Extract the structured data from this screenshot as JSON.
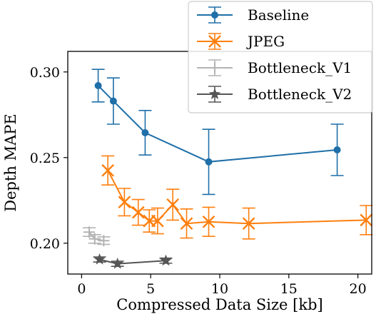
{
  "chart_data": {
    "type": "line",
    "title": "",
    "xlabel": "Compressed Data Size [kb]",
    "ylabel": "Depth MAPE",
    "xlim": [
      -1.0,
      21.0
    ],
    "ylim": [
      0.182,
      0.312
    ],
    "xticks": [
      0,
      5,
      10,
      15,
      20
    ],
    "yticks": [
      0.2,
      0.25,
      0.3
    ],
    "xtick_labels": [
      "0",
      "5",
      "10",
      "15",
      "20"
    ],
    "ytick_labels": [
      "0.20",
      "0.25",
      "0.30"
    ],
    "grid": false,
    "legend_position": "top-right",
    "series": [
      {
        "name": "Baseline",
        "color": "#1f6fa8",
        "marker": "circle",
        "points": [
          {
            "x": 1.2,
            "y": 0.292,
            "err": 0.0095
          },
          {
            "x": 2.3,
            "y": 0.283,
            "err": 0.0135
          },
          {
            "x": 4.6,
            "y": 0.2645,
            "err": 0.013
          },
          {
            "x": 9.2,
            "y": 0.2475,
            "err": 0.019
          },
          {
            "x": 18.5,
            "y": 0.2545,
            "err": 0.015
          }
        ]
      },
      {
        "name": "JPEG",
        "color": "#ff7f0e",
        "marker": "x",
        "points": [
          {
            "x": 1.9,
            "y": 0.2425,
            "err": 0.0085
          },
          {
            "x": 3.1,
            "y": 0.224,
            "err": 0.008
          },
          {
            "x": 4.1,
            "y": 0.218,
            "err": 0.0075
          },
          {
            "x": 4.9,
            "y": 0.213,
            "err": 0.0065
          },
          {
            "x": 5.5,
            "y": 0.213,
            "err": 0.0075
          },
          {
            "x": 6.6,
            "y": 0.2225,
            "err": 0.009
          },
          {
            "x": 7.6,
            "y": 0.2115,
            "err": 0.0085
          },
          {
            "x": 9.2,
            "y": 0.2125,
            "err": 0.0085
          },
          {
            "x": 12.1,
            "y": 0.2115,
            "err": 0.009
          },
          {
            "x": 20.6,
            "y": 0.2135,
            "err": 0.0085
          }
        ]
      },
      {
        "name": "Bottleneck_V1",
        "color": "#b3b3b3",
        "marker": "plus",
        "points": [
          {
            "x": 0.55,
            "y": 0.2065,
            "err": 0.0025
          },
          {
            "x": 0.95,
            "y": 0.2025,
            "err": 0.0025
          },
          {
            "x": 1.6,
            "y": 0.2015,
            "err": 0.0022
          }
        ]
      },
      {
        "name": "Bottleneck_V2",
        "color": "#555555",
        "marker": "star",
        "points": [
          {
            "x": 1.3,
            "y": 0.1905,
            "err": 0.0015
          },
          {
            "x": 2.6,
            "y": 0.188,
            "err": 0.0015
          },
          {
            "x": 6.1,
            "y": 0.1898,
            "err": 0.0015
          }
        ]
      }
    ]
  }
}
